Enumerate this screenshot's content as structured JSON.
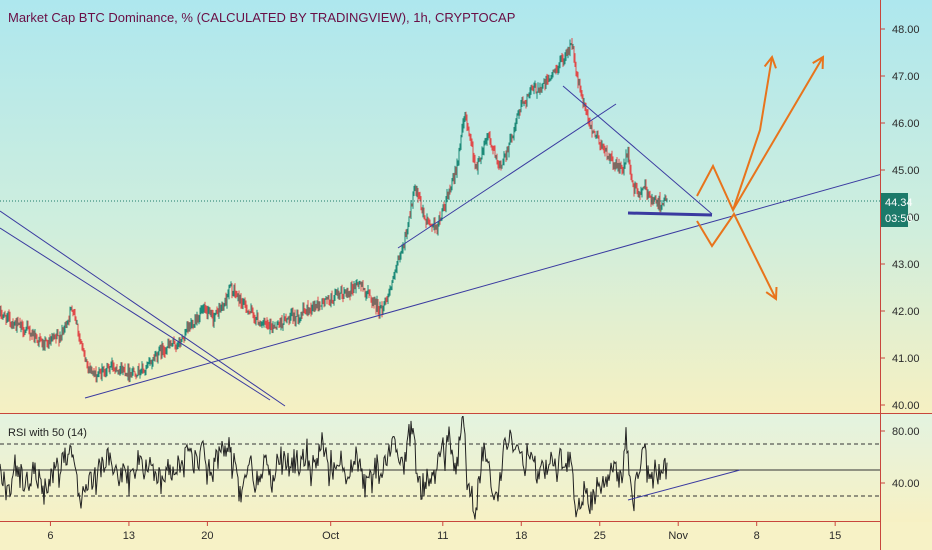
{
  "chart_title": "Market Cap BTC Dominance, % (CALCULATED BY TRADINGVIEW), 1h, CRYPTOCAP",
  "colors": {
    "bg_top": "#aee7ee",
    "bg_bottom": "#f6f0c2",
    "up": "#1c8a78",
    "down": "#e04a4a",
    "trendline": "#3a3aa0",
    "projection": "#e8741c",
    "price_box": "#1c7a6a",
    "separator": "#c8463c",
    "rsi_line": "#222222"
  },
  "current_price": {
    "value": "44.34",
    "countdown": "03:50"
  },
  "chart_data": {
    "type": "candlestick",
    "title": "Market Cap BTC Dominance, % (CALCULATED BY TRADINGVIEW), 1h, CRYPTOCAP",
    "y_ticks": [
      "48.00",
      "47.00",
      "46.00",
      "45.00",
      "44.00",
      "43.00",
      "42.00",
      "41.00",
      "40.00"
    ],
    "ylim": [
      39.9,
      48.35
    ],
    "x_ticks": [
      "6",
      "13",
      "20",
      "Oct",
      "11",
      "18",
      "25",
      "Nov",
      "8",
      "15"
    ],
    "x_tick_days": [
      6,
      13,
      20,
      31,
      41,
      48,
      55,
      62,
      69,
      76
    ],
    "xlim": [
      1.5,
      80
    ],
    "data_end_day": 61.0,
    "price_path": [
      [
        1.5,
        41.95
      ],
      [
        3,
        41.7
      ],
      [
        4.5,
        41.5
      ],
      [
        5.5,
        41.25
      ],
      [
        7,
        41.5
      ],
      [
        8,
        42.1
      ],
      [
        9,
        41.0
      ],
      [
        10,
        40.6
      ],
      [
        11.5,
        40.85
      ],
      [
        13,
        40.7
      ],
      [
        14.5,
        40.75
      ],
      [
        15.5,
        41.1
      ],
      [
        16.5,
        41.25
      ],
      [
        17.5,
        41.3
      ],
      [
        18.5,
        41.7
      ],
      [
        19.5,
        42.0
      ],
      [
        20.5,
        41.85
      ],
      [
        21.5,
        42.15
      ],
      [
        22,
        42.5
      ],
      [
        23,
        42.2
      ],
      [
        24.5,
        41.8
      ],
      [
        25.5,
        41.65
      ],
      [
        26.5,
        41.75
      ],
      [
        28,
        41.9
      ],
      [
        29.5,
        42.1
      ],
      [
        31,
        42.25
      ],
      [
        32.5,
        42.4
      ],
      [
        33.5,
        42.6
      ],
      [
        34.5,
        42.3
      ],
      [
        35.5,
        42.0
      ],
      [
        36.5,
        42.6
      ],
      [
        37.5,
        43.4
      ],
      [
        38.5,
        44.6
      ],
      [
        39.5,
        43.9
      ],
      [
        40.5,
        43.8
      ],
      [
        42,
        44.8
      ],
      [
        43,
        46.2
      ],
      [
        44,
        45.0
      ],
      [
        45,
        45.8
      ],
      [
        46,
        45.0
      ],
      [
        47,
        45.6
      ],
      [
        48,
        46.4
      ],
      [
        49,
        46.7
      ],
      [
        50,
        46.8
      ],
      [
        51,
        47.1
      ],
      [
        52,
        47.5
      ],
      [
        52.5,
        47.7
      ],
      [
        53,
        46.9
      ],
      [
        54,
        46.0
      ],
      [
        55,
        45.6
      ],
      [
        56,
        45.2
      ],
      [
        57,
        45.0
      ],
      [
        57.5,
        45.35
      ],
      [
        58,
        44.6
      ],
      [
        58.5,
        44.5
      ],
      [
        59,
        44.6
      ],
      [
        60,
        44.3
      ],
      [
        61,
        44.34
      ]
    ],
    "rsi": {
      "title": "RSI with 50 (14)",
      "y_ticks": [
        "80.00",
        "40.00"
      ],
      "ylim": [
        0,
        100
      ],
      "upper_band": 70,
      "lower_band": 30,
      "mid_line": 50
    }
  }
}
